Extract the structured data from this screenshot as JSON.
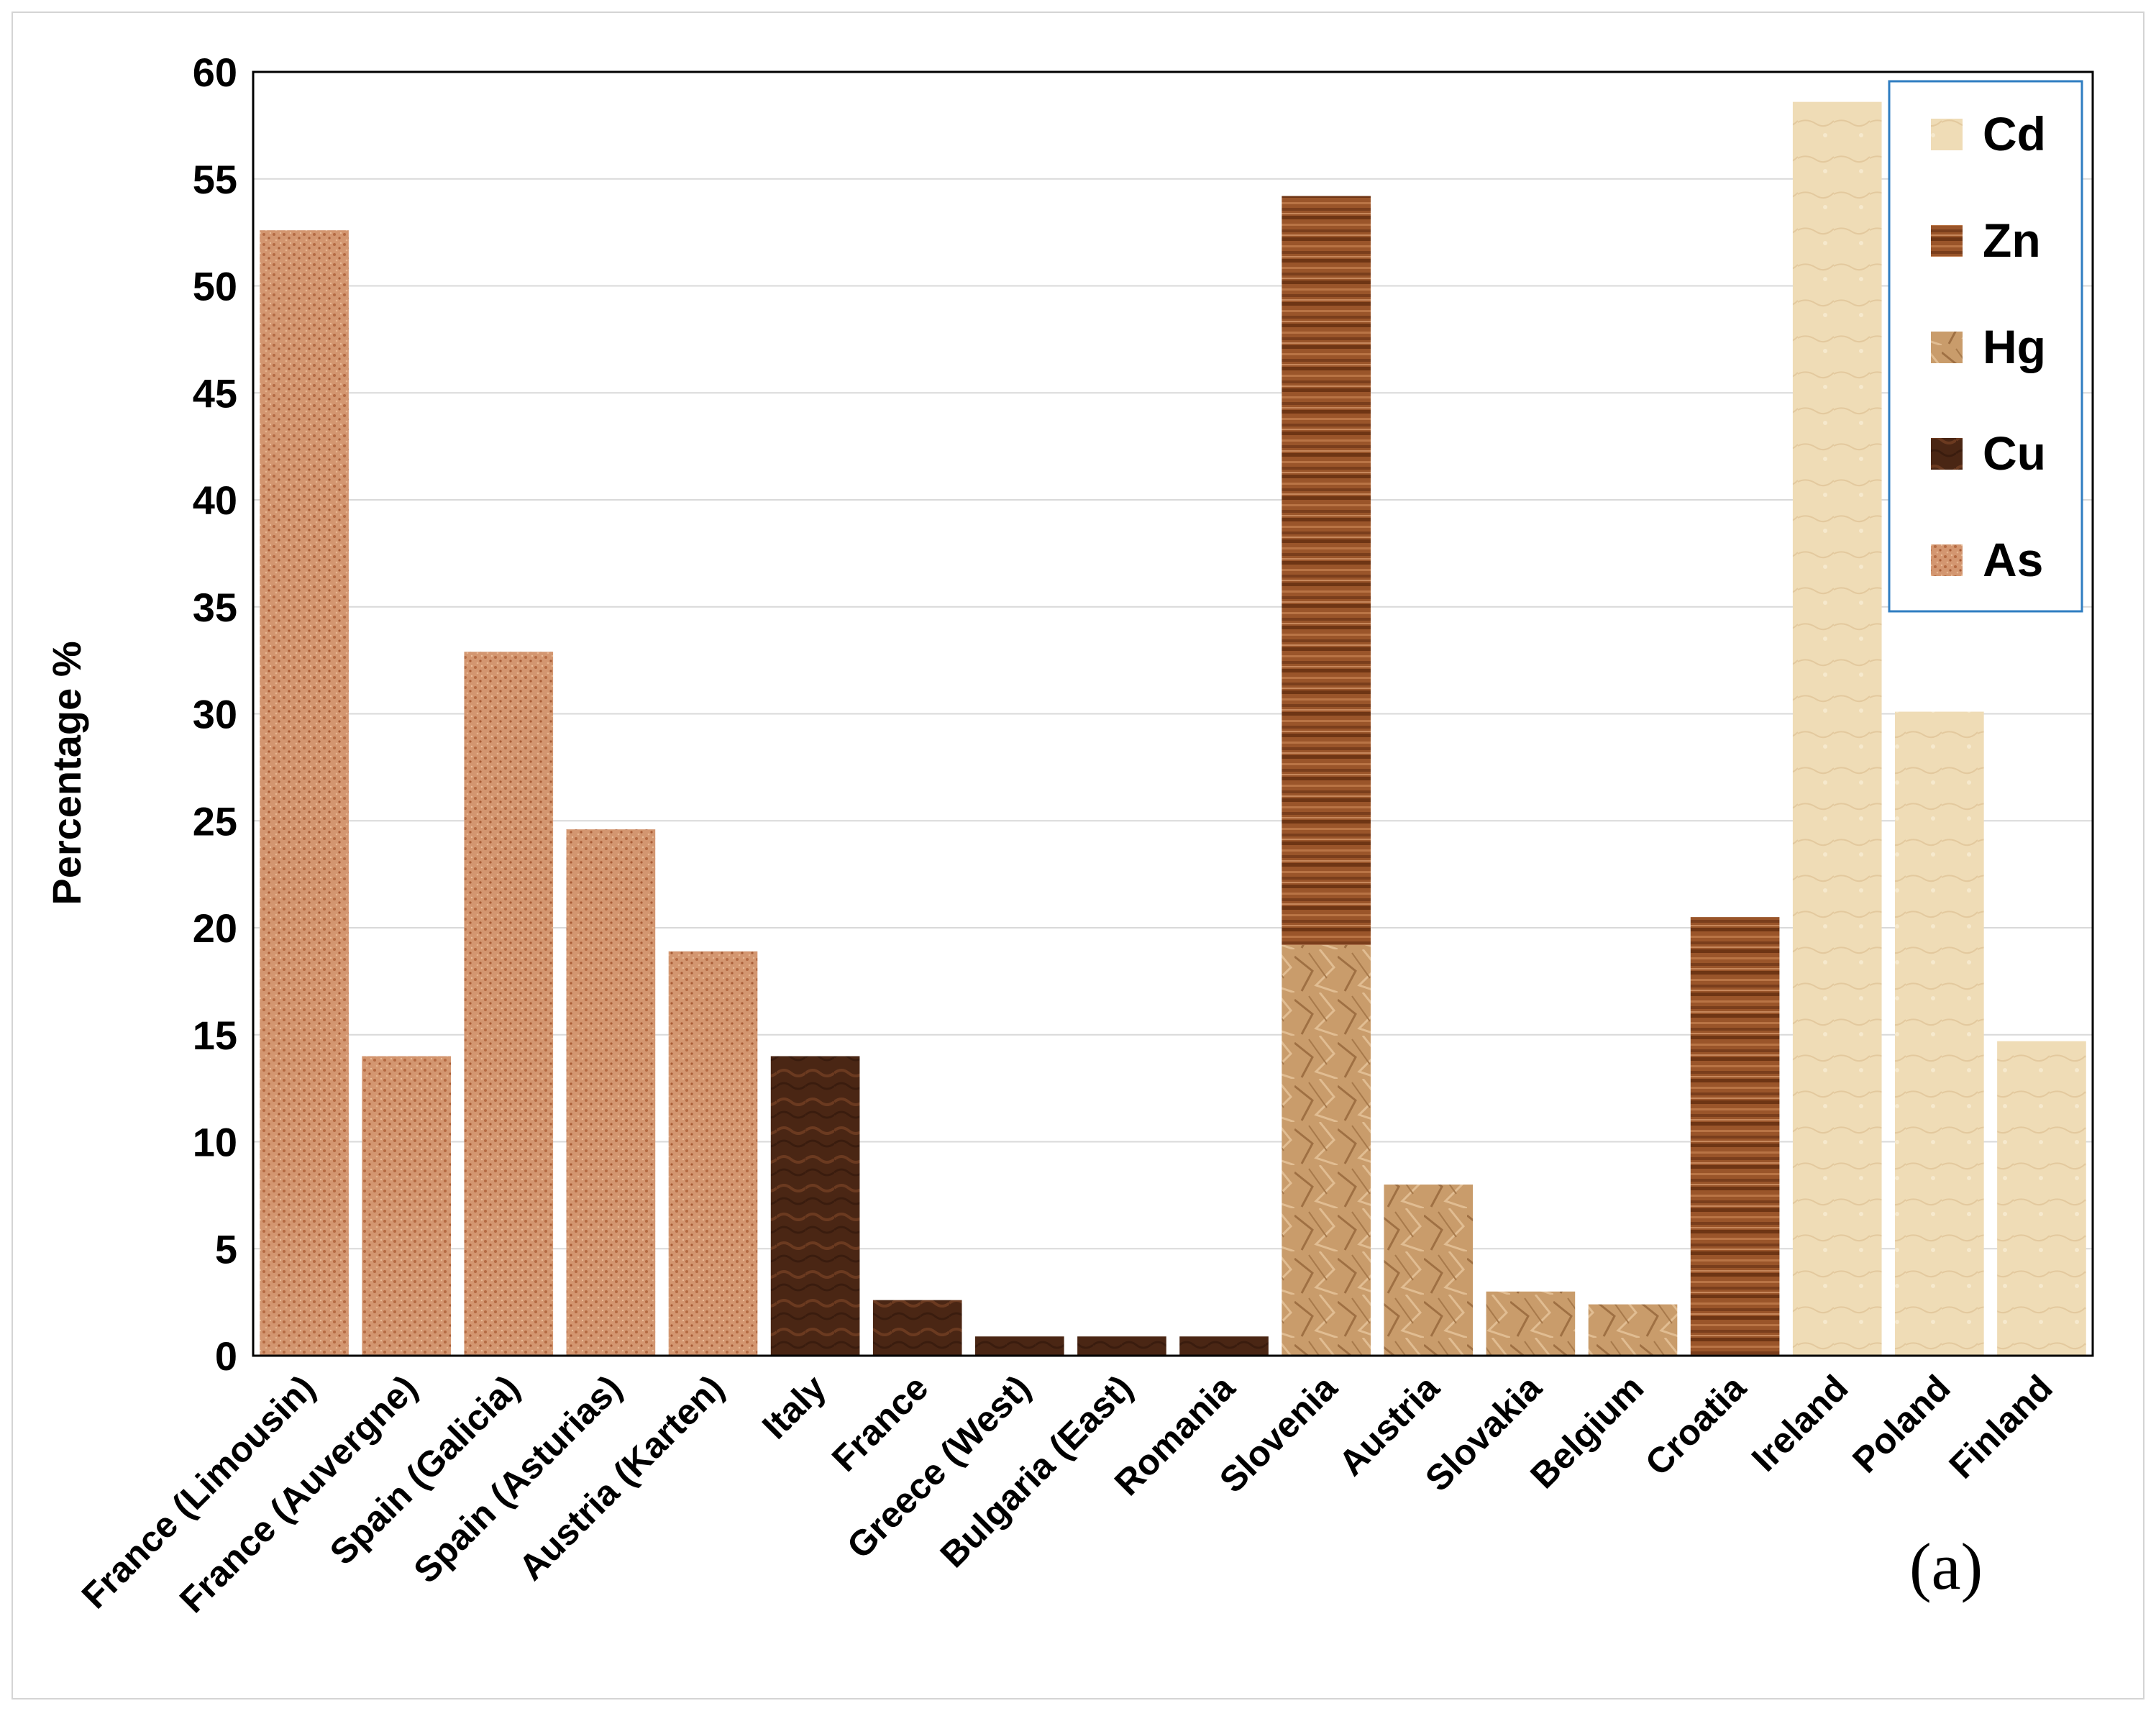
{
  "chart_data": {
    "type": "bar",
    "title": "",
    "xlabel": "",
    "ylabel": "Percentage %",
    "ylim": [
      0,
      60
    ],
    "yticks": [
      0,
      5,
      10,
      15,
      20,
      25,
      30,
      35,
      40,
      45,
      50,
      55,
      60
    ],
    "grid": true,
    "legend_position": "top-right",
    "panel_label": "(a)",
    "categories": [
      "France (Limousin)",
      "France (Auvergne)",
      "Spain (Galicia)",
      "Spain (Asturias)",
      "Austria (Karten)",
      "Italy",
      "France",
      "Greece (West)",
      "Bulgaria (East)",
      "Romania",
      "Slovenia",
      "Austria",
      "Slovakia",
      "Belgium",
      "Croatia",
      "Ireland",
      "Poland",
      "Finland"
    ],
    "series": [
      {
        "name": "Cd",
        "color": "#efdcb6",
        "values": [
          0,
          0,
          0,
          0,
          0,
          0,
          0,
          0,
          0,
          0,
          0,
          0,
          0,
          0,
          0,
          58.6,
          30.1,
          14.7
        ]
      },
      {
        "name": "Zn",
        "color": "#8e4a22",
        "values": [
          0,
          0,
          0,
          0,
          0,
          0,
          0,
          0,
          0,
          0,
          35.0,
          0,
          0,
          0,
          20.5,
          0,
          0,
          0
        ]
      },
      {
        "name": "Hg",
        "color": "#c79a68",
        "values": [
          0,
          0,
          0,
          0,
          0,
          0,
          0,
          0,
          0,
          0,
          19.2,
          8.0,
          3.0,
          2.4,
          0,
          0,
          0,
          0
        ]
      },
      {
        "name": "Cu",
        "color": "#4a2614",
        "values": [
          0,
          0,
          0,
          0,
          0,
          14.0,
          2.6,
          0.9,
          0.9,
          0.9,
          0,
          0,
          0,
          0,
          0,
          0,
          0,
          0
        ]
      },
      {
        "name": "As",
        "color": "#d09068",
        "values": [
          52.6,
          14.0,
          32.9,
          24.6,
          18.9,
          0,
          0,
          0,
          0,
          0,
          0,
          0,
          0,
          0,
          0,
          0,
          0,
          0
        ]
      }
    ]
  }
}
